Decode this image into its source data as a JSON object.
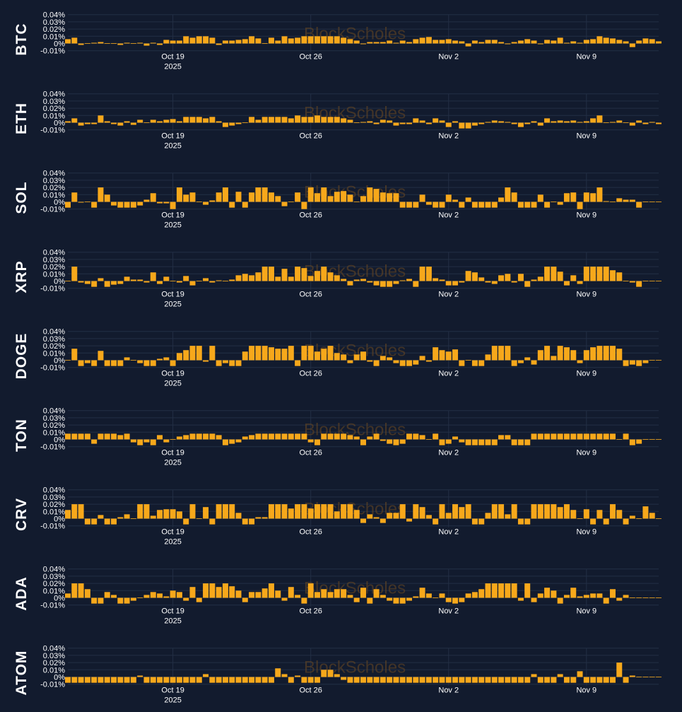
{
  "watermark": "BlockScholes",
  "colors": {
    "background": "#121b2e",
    "bar": "#f7a81b",
    "grid": "#232f45",
    "text": "#ffffff"
  },
  "chart_data": {
    "type": "bar",
    "ytick_labels": [
      "0.04%",
      "0.03%",
      "0.02%",
      "0.01%",
      "0%",
      "-0.01%"
    ],
    "yticks": [
      0.04,
      0.03,
      0.02,
      0.01,
      0,
      -0.01
    ],
    "ylim": [
      -0.012,
      0.04
    ],
    "x_range": [
      0,
      90
    ],
    "xticks": [
      {
        "pos": 16,
        "label": "Oct 19",
        "sublabel": "2025"
      },
      {
        "pos": 37,
        "label": "Oct 26",
        "sublabel": ""
      },
      {
        "pos": 58,
        "label": "Nov 2",
        "sublabel": ""
      },
      {
        "pos": 79,
        "label": "Nov 9",
        "sublabel": ""
      }
    ],
    "series": [
      {
        "name": "BTC",
        "values": [
          0.006,
          0.008,
          -0.002,
          0,
          0.001,
          0.002,
          0,
          0,
          -0.002,
          0.001,
          0,
          0.001,
          -0.003,
          0.001,
          -0.002,
          0.005,
          0.004,
          0.004,
          0.01,
          0.008,
          0.01,
          0.01,
          0.008,
          -0.002,
          0.004,
          0.004,
          0.005,
          0.006,
          0.01,
          0.007,
          0,
          0.008,
          0.004,
          0.01,
          0.007,
          0.008,
          0.01,
          0.01,
          0.01,
          0.01,
          0.01,
          0.01,
          0.008,
          0.006,
          0.004,
          -0.001,
          0.002,
          0.002,
          0.002,
          0.004,
          0.001,
          0.004,
          0.002,
          0.006,
          0.008,
          0.009,
          0.005,
          0.005,
          0.006,
          0.004,
          0.003,
          -0.004,
          0.004,
          0.002,
          0.005,
          0.005,
          0.002,
          -0.001,
          0.002,
          0.004,
          0.006,
          0.004,
          -0.001,
          0.005,
          0.004,
          0.008,
          0.001,
          0.003,
          0.001,
          0.005,
          0.006,
          0.01,
          0.008,
          0.007,
          0.005,
          0.003,
          -0.005,
          0.004,
          0.007,
          0.006,
          0.003
        ]
      },
      {
        "name": "ETH",
        "values": [
          0.002,
          0.006,
          -0.004,
          -0.002,
          -0.002,
          0.01,
          0.002,
          -0.002,
          -0.004,
          0.002,
          -0.003,
          0.004,
          0,
          0.004,
          0.002,
          0.004,
          0.005,
          0.002,
          0.008,
          0.008,
          0.008,
          0.006,
          0.008,
          0.002,
          -0.006,
          -0.004,
          -0.002,
          0,
          0.008,
          0.004,
          0.008,
          0.008,
          0.008,
          0.008,
          0.006,
          0.01,
          0.008,
          0.008,
          0.01,
          0.008,
          0.008,
          0.008,
          0.006,
          0.004,
          0,
          0.001,
          0.002,
          -0.002,
          0.004,
          0.003,
          -0.004,
          -0.002,
          -0.002,
          0.006,
          0.003,
          -0.002,
          0.006,
          0.003,
          -0.006,
          0.002,
          -0.008,
          -0.008,
          -0.004,
          -0.002,
          0.001,
          0.003,
          0.002,
          0.001,
          -0.002,
          -0.006,
          -0.002,
          0.002,
          -0.004,
          0.006,
          0.002,
          0.003,
          0.002,
          0.003,
          0.001,
          0.002,
          0.006,
          0.01,
          0,
          0.001,
          0.003,
          0,
          -0.004,
          0.003,
          -0.002,
          0.001,
          -0.002
        ]
      },
      {
        "name": "SOL",
        "values": [
          -0.008,
          0.013,
          -0.001,
          0,
          -0.008,
          0.02,
          0.01,
          -0.005,
          -0.008,
          -0.008,
          -0.008,
          -0.005,
          0.003,
          0.012,
          -0.002,
          -0.002,
          -0.01,
          0.02,
          0.01,
          0.013,
          0,
          -0.004,
          0.002,
          0.013,
          0.02,
          -0.008,
          0.014,
          -0.008,
          0.013,
          0.02,
          0.02,
          0.013,
          0.008,
          -0.006,
          0,
          0.013,
          -0.01,
          0.02,
          0.012,
          0.02,
          0.008,
          0.014,
          0.015,
          0.01,
          0,
          0.008,
          0.02,
          0.018,
          0.013,
          0.012,
          0.012,
          -0.008,
          -0.008,
          -0.008,
          0.01,
          -0.004,
          -0.008,
          -0.008,
          0.01,
          0.003,
          -0.008,
          0.006,
          -0.008,
          -0.008,
          -0.008,
          -0.008,
          0.006,
          0.02,
          0.013,
          -0.008,
          -0.008,
          -0.008,
          0.01,
          -0.008,
          0,
          -0.004,
          0.012,
          0.013,
          -0.01,
          0.013,
          0.012,
          0.02,
          0.001,
          0,
          0.005,
          0.003,
          0.003,
          -0.008,
          0,
          0,
          0
        ]
      },
      {
        "name": "XRP",
        "values": [
          0,
          0.02,
          -0.002,
          -0.004,
          -0.008,
          0.004,
          -0.008,
          -0.005,
          -0.004,
          0.006,
          0.002,
          0.002,
          -0.002,
          0.012,
          -0.004,
          0.006,
          0,
          -0.002,
          0.007,
          -0.006,
          0,
          0.004,
          -0.002,
          0.001,
          0,
          0.002,
          0.008,
          0.01,
          0.008,
          0.012,
          0.02,
          0.02,
          0.006,
          0.017,
          0.006,
          0.02,
          0.018,
          0.007,
          0.014,
          0.02,
          0.012,
          0.008,
          0.003,
          -0.006,
          0.002,
          0.003,
          -0.002,
          -0.006,
          -0.008,
          -0.008,
          -0.004,
          0.001,
          0.003,
          -0.008,
          0.02,
          0.02,
          0.004,
          0.002,
          -0.006,
          -0.006,
          -0.002,
          0.014,
          0.012,
          0.005,
          -0.002,
          -0.004,
          0.008,
          0.01,
          -0.002,
          0.01,
          -0.008,
          0.002,
          0.006,
          0.02,
          0.02,
          0.013,
          -0.006,
          0.008,
          -0.004,
          0.02,
          0.02,
          0.02,
          0.02,
          0.015,
          0.012,
          0,
          -0.002,
          -0.008,
          0,
          0,
          0
        ]
      },
      {
        "name": "DOGE",
        "values": [
          0,
          0.016,
          -0.008,
          -0.004,
          -0.008,
          0.013,
          -0.008,
          -0.008,
          -0.008,
          0.004,
          0,
          -0.004,
          -0.008,
          -0.008,
          0.002,
          0.004,
          -0.008,
          0.01,
          0.014,
          0.02,
          0.02,
          -0.002,
          0.02,
          -0.008,
          -0.004,
          -0.008,
          -0.008,
          0.012,
          0.02,
          0.02,
          0.02,
          0.018,
          0.016,
          0.016,
          0.02,
          -0.008,
          0.02,
          0.02,
          0.012,
          0.016,
          0.02,
          0.01,
          0.008,
          -0.004,
          0.008,
          0.012,
          -0.002,
          -0.008,
          0.006,
          0.004,
          -0.004,
          -0.008,
          -0.008,
          -0.006,
          0.006,
          -0.002,
          0.018,
          0.014,
          0.012,
          0.015,
          -0.008,
          0,
          -0.008,
          -0.008,
          0.008,
          0.02,
          0.02,
          0.02,
          -0.008,
          -0.004,
          0.004,
          -0.006,
          0.014,
          0.02,
          0.006,
          0.02,
          0.018,
          0.014,
          -0.004,
          0.014,
          0.018,
          0.02,
          0.02,
          0.02,
          0.016,
          -0.008,
          -0.006,
          -0.008,
          -0.004,
          0,
          0
        ]
      },
      {
        "name": "TON",
        "values": [
          0.008,
          0.008,
          0.008,
          0.008,
          -0.006,
          0.008,
          0.008,
          0.008,
          0.006,
          0.008,
          -0.004,
          -0.008,
          -0.004,
          -0.008,
          0.006,
          -0.004,
          0,
          0.004,
          0.006,
          0.008,
          0.008,
          0.008,
          0.008,
          0.006,
          -0.008,
          -0.006,
          -0.004,
          0.004,
          0.006,
          0.008,
          0.008,
          0.008,
          0.008,
          0.008,
          0.008,
          0.008,
          0.008,
          -0.004,
          -0.008,
          0.008,
          0.008,
          0.008,
          0.008,
          0.006,
          0.004,
          -0.008,
          0.004,
          0.008,
          -0.002,
          -0.006,
          -0.008,
          -0.006,
          0.008,
          0.008,
          0.006,
          0,
          0.008,
          -0.008,
          -0.006,
          0.004,
          -0.004,
          -0.008,
          -0.008,
          -0.008,
          -0.008,
          -0.008,
          0.006,
          0.006,
          -0.008,
          -0.008,
          -0.008,
          0.008,
          0.008,
          0.008,
          0.008,
          0.008,
          0.008,
          0.008,
          0.008,
          0.008,
          0.008,
          0.008,
          0.008,
          0.008,
          0,
          0.008,
          -0.008,
          -0.006,
          0,
          0,
          0
        ]
      },
      {
        "name": "CRV",
        "values": [
          0.012,
          0.02,
          0.02,
          -0.008,
          -0.008,
          0.005,
          -0.008,
          -0.008,
          0.002,
          0.006,
          0,
          0.02,
          0.02,
          0.004,
          0.012,
          0.013,
          0.013,
          0.01,
          -0.008,
          0.02,
          0,
          0.016,
          -0.008,
          0.02,
          0.02,
          0.02,
          0.008,
          -0.008,
          -0.008,
          0.002,
          0.002,
          0.02,
          0.02,
          0.02,
          0.014,
          0.02,
          0.02,
          0.014,
          0.02,
          0.02,
          0.02,
          0.01,
          0.02,
          0.02,
          0.012,
          -0.006,
          0.006,
          0.002,
          -0.006,
          0.008,
          0.008,
          0.02,
          -0.004,
          0.02,
          0.016,
          0.005,
          -0.008,
          0.02,
          0.008,
          0.02,
          0.016,
          0.02,
          -0.008,
          -0.008,
          0.008,
          0.02,
          0.02,
          0.006,
          0.02,
          -0.008,
          -0.008,
          0.02,
          0.02,
          0.02,
          0.02,
          0.016,
          0.02,
          0.012,
          0,
          0.013,
          -0.008,
          0.012,
          -0.008,
          0.02,
          0.012,
          -0.008,
          0.004,
          0,
          0.017,
          0.008,
          0
        ]
      },
      {
        "name": "ADA",
        "values": [
          0.006,
          0.02,
          0.02,
          0.012,
          -0.008,
          -0.008,
          0.008,
          0.004,
          -0.008,
          -0.008,
          -0.004,
          0,
          0.004,
          0.008,
          0.006,
          0.002,
          0.01,
          0.008,
          -0.004,
          0.015,
          -0.006,
          0.02,
          0.02,
          0.015,
          0.02,
          0.016,
          0.01,
          -0.006,
          0.008,
          0.008,
          0.013,
          0.02,
          0.01,
          -0.004,
          0.015,
          0.004,
          -0.008,
          0.02,
          0.008,
          0.012,
          0.008,
          0.012,
          0.012,
          0.004,
          -0.006,
          0.014,
          -0.008,
          0.012,
          0.004,
          -0.004,
          -0.008,
          -0.008,
          -0.004,
          0.002,
          0.014,
          0.006,
          0,
          0.006,
          -0.006,
          -0.008,
          -0.006,
          0.006,
          0.008,
          0.012,
          0.02,
          0.02,
          0.02,
          0.02,
          0.02,
          -0.004,
          0.02,
          -0.006,
          0.006,
          0.014,
          0.01,
          -0.008,
          0.004,
          0.014,
          0.002,
          0.004,
          0.006,
          0.006,
          -0.008,
          0.012,
          -0.004,
          0.004,
          0,
          0,
          0,
          0,
          0
        ]
      },
      {
        "name": "ATOM",
        "values": [
          -0.008,
          -0.008,
          -0.008,
          -0.008,
          -0.008,
          -0.008,
          -0.008,
          -0.008,
          -0.008,
          -0.008,
          -0.008,
          0.002,
          -0.008,
          -0.008,
          -0.008,
          -0.008,
          -0.008,
          -0.008,
          -0.008,
          -0.008,
          -0.008,
          0.004,
          -0.008,
          -0.008,
          -0.008,
          -0.008,
          -0.008,
          -0.008,
          -0.008,
          -0.008,
          -0.008,
          -0.008,
          0.012,
          0.004,
          -0.008,
          0.002,
          -0.008,
          -0.008,
          -0.008,
          0.01,
          0.01,
          0.004,
          -0.004,
          -0.008,
          -0.008,
          -0.008,
          -0.008,
          -0.008,
          -0.008,
          -0.008,
          -0.008,
          -0.008,
          -0.008,
          -0.008,
          -0.008,
          -0.008,
          -0.008,
          -0.008,
          -0.008,
          -0.008,
          -0.008,
          -0.008,
          -0.008,
          -0.008,
          -0.008,
          -0.008,
          -0.008,
          -0.008,
          -0.008,
          -0.008,
          -0.008,
          0.004,
          -0.008,
          -0.008,
          -0.008,
          0.004,
          -0.008,
          -0.008,
          0.008,
          -0.008,
          -0.008,
          -0.008,
          -0.008,
          -0.008,
          0.02,
          -0.008,
          0.002,
          0,
          0,
          0,
          0
        ]
      }
    ]
  }
}
